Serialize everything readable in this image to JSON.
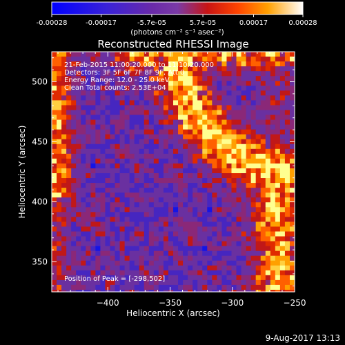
{
  "chart_data": {
    "type": "heatmap",
    "title": "Reconstructed RHESSI Image",
    "xlabel": "Heliocentric X (arcsec)",
    "ylabel": "Heliocentric Y (arcsec)",
    "xlim": [
      -445,
      -250
    ],
    "ylim": [
      325,
      525
    ],
    "x_ticks": [
      -400,
      -350,
      -300,
      -250
    ],
    "y_ticks": [
      350,
      400,
      450,
      500
    ],
    "colorbar": {
      "range": [
        -0.00028,
        0.00028
      ],
      "tick_labels": [
        "-0.00028",
        "-0.00017",
        "-5.7e-05",
        "5.7e-05",
        "0.00017",
        "0.00028"
      ],
      "tick_values": [
        -0.00028,
        -0.00017,
        -5.7e-05,
        5.7e-05,
        0.00017,
        0.00028
      ],
      "units": "(photons cm⁻² s⁻¹ asec⁻²)"
    },
    "annotations": [
      "21-Feb-2015 11:00:20.000 to 11:10:20.000",
      "Detectors: 3F 5F 6F 7F 8F 9F, Att 0",
      "Energy Range: 12.0 - 25.0 keV",
      "Clean    Total counts: 2.53E+04"
    ],
    "peak_label": "Position of Peak = [-298,502]",
    "footer": "9-Aug-2017 13:13",
    "colors": {
      "background": "#000000",
      "negative": "#0000ff",
      "zero": "#7a3aa6",
      "positive_low": "#d01010",
      "positive_high": "#ffff80"
    }
  }
}
